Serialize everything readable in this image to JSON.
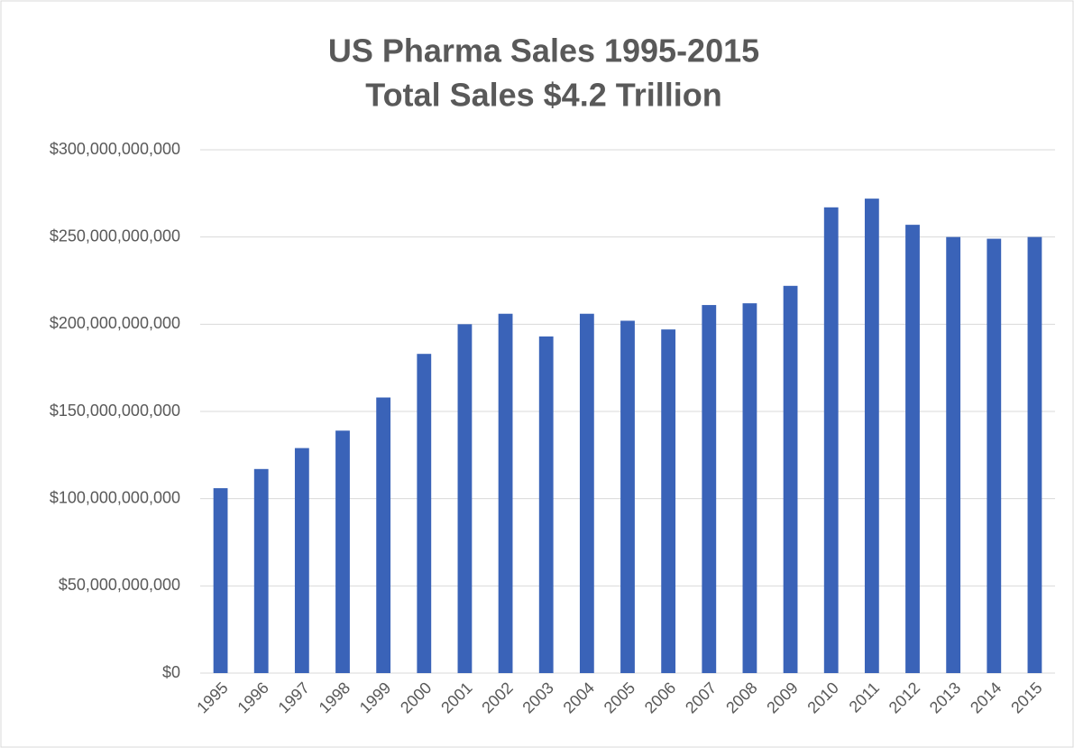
{
  "chart_data": {
    "type": "bar",
    "title": "US Pharma Sales 1995-2015",
    "subtitle": "Total Sales $4.2 Trillion",
    "categories": [
      "1995",
      "1996",
      "1997",
      "1998",
      "1999",
      "2000",
      "2001",
      "2002",
      "2003",
      "2004",
      "2005",
      "2006",
      "2007",
      "2008",
      "2009",
      "2010",
      "2011",
      "2012",
      "2013",
      "2014",
      "2015"
    ],
    "values": [
      106000000000,
      117000000000,
      129000000000,
      139000000000,
      158000000000,
      183000000000,
      200000000000,
      206000000000,
      193000000000,
      206000000000,
      202000000000,
      197000000000,
      211000000000,
      212000000000,
      222000000000,
      267000000000,
      272000000000,
      257000000000,
      250000000000,
      249000000000,
      250000000000
    ],
    "color": "#3a63b8",
    "ylim": [
      0,
      300000000000
    ],
    "yticks": [
      {
        "value": 0,
        "label": "$0"
      },
      {
        "value": 50000000000,
        "label": "$50,000,000,000"
      },
      {
        "value": 100000000000,
        "label": "$100,000,000,000"
      },
      {
        "value": 150000000000,
        "label": "$150,000,000,000"
      },
      {
        "value": 200000000000,
        "label": "$200,000,000,000"
      },
      {
        "value": 250000000000,
        "label": "$250,000,000,000"
      },
      {
        "value": 300000000000,
        "label": "$300,000,000,000"
      }
    ],
    "grid": true
  }
}
